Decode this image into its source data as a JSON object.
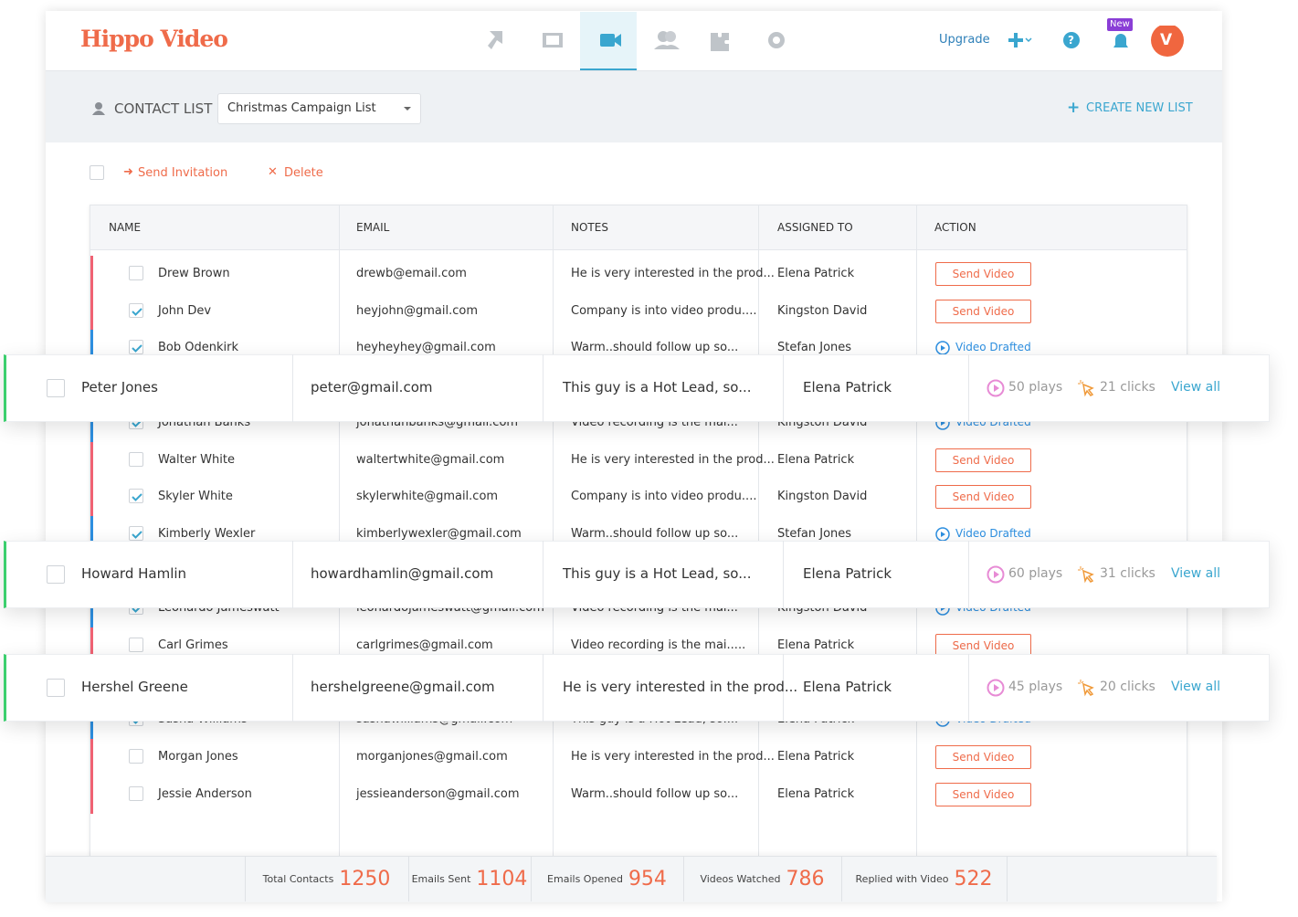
{
  "header": {
    "logo": "Hippo Video",
    "upgrade": "Upgrade",
    "badge": "New",
    "avatar": "V"
  },
  "toolbar": {
    "label": "CONTACT LIST",
    "selected_list": "Christmas Campaign List",
    "create": "CREATE NEW LIST"
  },
  "bulk_actions": {
    "send": "Send Invitation",
    "delete": "Delete"
  },
  "table": {
    "columns": [
      "NAME",
      "EMAIL",
      "NOTES",
      "ASSIGNED TO",
      "ACTION"
    ],
    "rows": [
      {
        "name": "Drew Brown",
        "email": "drewb@email.com",
        "notes": "He is very interested in the prod...",
        "assigned": "Elena Patrick",
        "action": "Send Video",
        "action_style": "button",
        "checked": false,
        "bar_color": "#f06273"
      },
      {
        "name": "John Dev",
        "email": "heyjohn@gmail.com",
        "notes": "Company is into video produ....",
        "assigned": "Kingston David",
        "action": "Send Video",
        "action_style": "button",
        "checked": true,
        "bar_color": "#f06273"
      },
      {
        "name": "Bob Odenkirk",
        "email": "heyheyhey@gmail.com",
        "notes": "Warm..should follow up so...",
        "assigned": "Stefan Jones",
        "action": "Video Drafted",
        "action_style": "link",
        "checked": true,
        "bar_color": "#2d8fe0"
      },
      {
        "name": "Jonathan Banks",
        "email": "jonathanbanks@gmail.com",
        "notes": "Video recording is the mai...",
        "assigned": "Kingston David",
        "action": "Video Drafted",
        "action_style": "link",
        "checked": true,
        "bar_color": "#2d8fe0"
      },
      {
        "name": "Walter White",
        "email": "waltertwhite@gmail.com",
        "notes": "He is very interested in the prod...",
        "assigned": "Elena Patrick",
        "action": "Send Video",
        "action_style": "button",
        "checked": false,
        "bar_color": "#f06273"
      },
      {
        "name": "Skyler White",
        "email": "skylerwhite@gmail.com",
        "notes": "Company is into video produ....",
        "assigned": "Kingston David",
        "action": "Send Video",
        "action_style": "button",
        "checked": true,
        "bar_color": "#f06273"
      },
      {
        "name": "Kimberly Wexler",
        "email": "kimberlywexler@gmail.com",
        "notes": "Warm..should follow up so...",
        "assigned": "Stefan Jones",
        "action": "Video Drafted",
        "action_style": "link",
        "checked": true,
        "bar_color": "#2d8fe0"
      },
      {
        "name": "Leonardo Jameswatt",
        "email": "leonardojameswatt@gmail.com",
        "notes": "Video recording is the mai...",
        "assigned": "Kingston David",
        "action": "Video Drafted",
        "action_style": "link",
        "checked": true,
        "bar_color": "#2d8fe0"
      },
      {
        "name": "Carl Grimes",
        "email": "carlgrimes@gmail.com",
        "notes": "Video recording is the mai.....",
        "assigned": "Elena Patrick",
        "action": "Send Video",
        "action_style": "button",
        "checked": false,
        "bar_color": "#f06273"
      },
      {
        "name": "Sasha Williams",
        "email": "sashawilliams@gmail.com",
        "notes": "This guy is a Hot Lead, so....",
        "assigned": "Elena Patrick",
        "action": "Video Drafted",
        "action_style": "link",
        "checked": true,
        "bar_color": "#2d8fe0"
      },
      {
        "name": "Morgan Jones",
        "email": "morganjones@gmail.com",
        "notes": "He is very interested in the prod...",
        "assigned": "Elena Patrick",
        "action": "Send Video",
        "action_style": "button",
        "checked": false,
        "bar_color": "#f06273"
      },
      {
        "name": "Jessie Anderson",
        "email": "jessieanderson@gmail.com",
        "notes": "Warm..should follow up so...",
        "assigned": "Elena Patrick",
        "action": "Send Video",
        "action_style": "button",
        "checked": false,
        "bar_color": "#f06273"
      }
    ]
  },
  "highlights": [
    {
      "name": "Peter Jones",
      "email": "peter@gmail.com",
      "notes": "This guy is a Hot Lead, so...",
      "assigned": "Elena Patrick",
      "plays": "50 plays",
      "clicks": "21 clicks",
      "link": "View all"
    },
    {
      "name": "Howard Hamlin",
      "email": "howardhamlin@gmail.com",
      "notes": "This guy is a Hot Lead, so...",
      "assigned": "Elena Patrick",
      "plays": "60 plays",
      "clicks": "31 clicks",
      "link": "View all"
    },
    {
      "name": "Hershel Greene",
      "email": "hershelgreene@gmail.com",
      "notes": "He is very interested in the prod...",
      "assigned": "Elena Patrick",
      "plays": "45 plays",
      "clicks": "20 clicks",
      "link": "View all"
    }
  ],
  "stats": [
    {
      "label": "Total Contacts",
      "value": 1250
    },
    {
      "label": "Emails Sent",
      "value": 1104
    },
    {
      "label": "Emails Opened",
      "value": 954
    },
    {
      "label": "Videos Watched",
      "value": 786
    },
    {
      "label": "Replied with Video",
      "value": 522
    }
  ]
}
